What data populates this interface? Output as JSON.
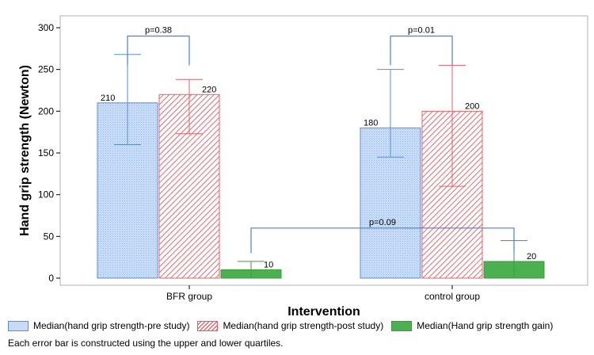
{
  "chart_data": {
    "type": "bar",
    "xlabel": "Intervention",
    "ylabel": "Hand grip strength (Newton)",
    "ylim": [
      0,
      300
    ],
    "yticks": [
      0,
      50,
      100,
      150,
      200,
      250,
      300
    ],
    "grid": false,
    "categories": [
      "BFR group",
      "control group"
    ],
    "series": [
      {
        "name": "Median(hand grip strength-pre study)",
        "color": "#bcd3f5",
        "edge": "#5b8ed8",
        "pattern": "dots",
        "values": [
          210,
          180
        ],
        "labels": [
          "210",
          "180"
        ],
        "error_low": [
          160,
          145
        ],
        "error_high": [
          268,
          250
        ]
      },
      {
        "name": "Median(hand grip strength-post study)",
        "color": "#f7c8c8",
        "edge": "#e0606a",
        "pattern": "hatch",
        "values": [
          220,
          200
        ],
        "labels": [
          "220",
          "200"
        ],
        "error_low": [
          173,
          110
        ],
        "error_high": [
          238,
          255
        ]
      },
      {
        "name": "Median(Hand grip strength gain)",
        "color": "#4caf50",
        "edge": "#3c9a40",
        "pattern": "solid",
        "values": [
          10,
          20
        ],
        "labels": [
          "10",
          "20"
        ],
        "error_low": [
          0,
          0
        ],
        "error_high": [
          20,
          45
        ]
      }
    ],
    "annotations": [
      {
        "text": "p=0.38",
        "group": 0,
        "from_series": 0,
        "to_series": 1,
        "y": 290,
        "drop_to": 255
      },
      {
        "text": "p=0.01",
        "group": 1,
        "from_series": 0,
        "to_series": 1,
        "y": 290,
        "drop_to": 255
      },
      {
        "text": "p=0.09",
        "group": -1,
        "from_series": 2,
        "to_series": 2,
        "y": 60,
        "drop_to": 30
      }
    ],
    "footnote": "Each error bar is constructed using the upper and lower quartiles."
  }
}
